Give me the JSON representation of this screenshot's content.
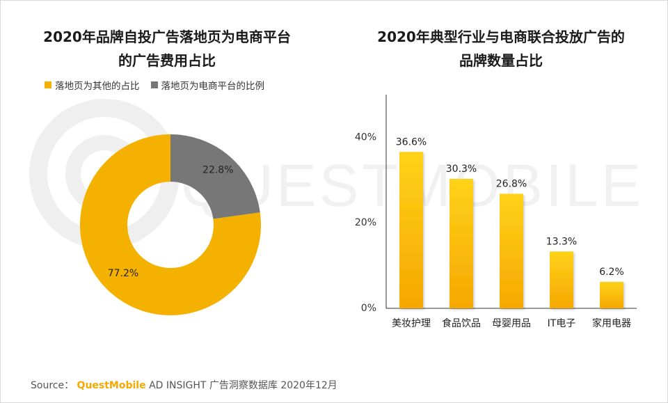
{
  "left_chart": {
    "title_line1": "2020年品牌自投广告落地页为电商平台",
    "title_line2": "的广告费用占比",
    "legend": [
      {
        "label": "落地页为其他的占比",
        "color": "#F5B100"
      },
      {
        "label": "落地页为电商平台的比例",
        "color": "#777777"
      }
    ]
  },
  "right_chart": {
    "title_line1": "2020年典型行业与电商联合投放广告的",
    "title_line2": "品牌数量占比"
  },
  "chart_data": [
    {
      "type": "pie",
      "title": "2020年品牌自投广告落地页为电商平台的广告费用占比",
      "categories": [
        "落地页为其他的占比",
        "落地页为电商平台的比例"
      ],
      "values": [
        77.2,
        22.8
      ],
      "labels": [
        "77.2%",
        "22.8%"
      ],
      "colors": [
        "#F5B100",
        "#777777"
      ],
      "donut": true,
      "legend_position": "top"
    },
    {
      "type": "bar",
      "title": "2020年典型行业与电商联合投放广告的品牌数量占比",
      "categories": [
        "美妆护理",
        "食品饮品",
        "母婴用品",
        "IT电子",
        "家用电器"
      ],
      "values": [
        36.6,
        30.3,
        26.8,
        13.3,
        6.2
      ],
      "labels": [
        "36.6%",
        "30.3%",
        "26.8%",
        "13.3%",
        "6.2%"
      ],
      "ylim": [
        0,
        50
      ],
      "yticks": [
        0,
        20,
        40
      ],
      "ytick_labels": [
        "0%",
        "20%",
        "40%"
      ],
      "xlabel": "",
      "ylabel": "",
      "grid": false,
      "bar_color_top": "#FFD21A",
      "bar_color_bottom": "#F5A800"
    }
  ],
  "watermark": {
    "text": "QUESTMOBILE"
  },
  "source": {
    "prefix": "Source：",
    "brand": "QuestMobile",
    "rest": "AD INSIGHT 广告洞察数据库 2020年12月"
  }
}
